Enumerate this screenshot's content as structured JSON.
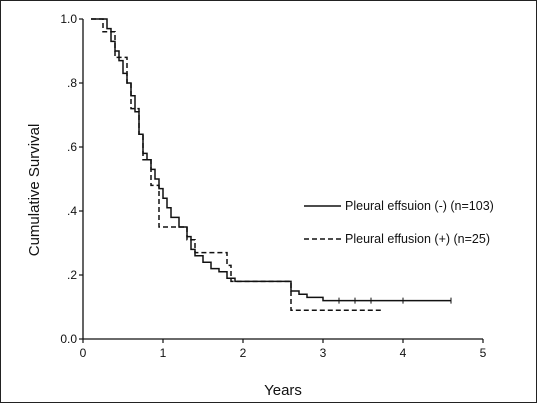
{
  "chart_data": {
    "type": "line",
    "title": "",
    "xlabel": "Years",
    "ylabel": "Cumulative Survival",
    "xlim": [
      0,
      5
    ],
    "ylim": [
      0,
      1
    ],
    "x_ticks": [
      0,
      1,
      2,
      3,
      4,
      5
    ],
    "x_tick_labels": [
      "0",
      "1",
      "2",
      "3",
      "4",
      "5"
    ],
    "y_ticks": [
      0,
      0.2,
      0.4,
      0.6,
      0.8,
      1.0
    ],
    "y_tick_labels": [
      "0.0",
      ".2",
      ".4",
      ".6",
      ".8",
      "1.0"
    ],
    "grid": false,
    "legend_position": "right",
    "series": [
      {
        "name": "Pleural effsuion (-) (n=103)",
        "style": "solid",
        "color": "#111111",
        "x": [
          0.1,
          0.3,
          0.35,
          0.4,
          0.45,
          0.5,
          0.55,
          0.6,
          0.65,
          0.7,
          0.75,
          0.8,
          0.85,
          0.9,
          0.95,
          1.0,
          1.05,
          1.1,
          1.2,
          1.3,
          1.35,
          1.4,
          1.5,
          1.6,
          1.7,
          1.8,
          1.9,
          2.6,
          2.7,
          2.8,
          3.0,
          3.2,
          3.4,
          3.6,
          4.0,
          4.6
        ],
        "y": [
          1.0,
          0.97,
          0.93,
          0.9,
          0.87,
          0.83,
          0.8,
          0.76,
          0.71,
          0.64,
          0.58,
          0.56,
          0.53,
          0.5,
          0.47,
          0.44,
          0.41,
          0.38,
          0.35,
          0.32,
          0.28,
          0.26,
          0.24,
          0.22,
          0.21,
          0.19,
          0.18,
          0.15,
          0.14,
          0.13,
          0.12,
          0.12,
          0.12,
          0.12,
          0.12,
          0.12
        ]
      },
      {
        "name": "Pleural effusion (+) (n=25)",
        "style": "dashed",
        "color": "#111111",
        "x": [
          0.1,
          0.25,
          0.4,
          0.55,
          0.6,
          0.7,
          0.75,
          0.85,
          0.95,
          1.3,
          1.4,
          1.8,
          1.85,
          2.6,
          3.75
        ],
        "y": [
          1.0,
          0.96,
          0.88,
          0.8,
          0.72,
          0.64,
          0.56,
          0.48,
          0.35,
          0.31,
          0.27,
          0.23,
          0.18,
          0.09,
          0.09
        ]
      }
    ]
  }
}
